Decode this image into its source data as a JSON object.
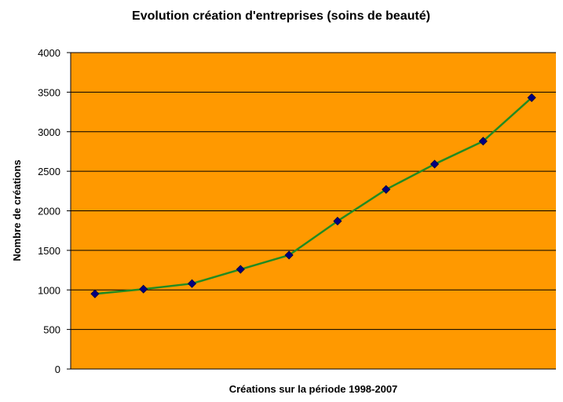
{
  "chart_data": {
    "type": "line",
    "title": "Evolution création d'entreprises (soins de beauté)",
    "xlabel": "Créations sur la période 1998-2007",
    "ylabel": "Nombre de créations",
    "ylim": [
      0,
      4000
    ],
    "yticks": [
      0,
      500,
      1000,
      1500,
      2000,
      2500,
      3000,
      3500,
      4000
    ],
    "grid": true,
    "legend": "none",
    "x": [
      "1998",
      "1999",
      "2000",
      "2001",
      "2002",
      "2003",
      "2004",
      "2005",
      "2006",
      "2007"
    ],
    "x_tick_labels_shown": false,
    "series": [
      {
        "values": [
          950,
          1010,
          1080,
          1260,
          1440,
          1870,
          2270,
          2590,
          2880,
          3430
        ]
      }
    ],
    "colors": {
      "plot_background": "#FF9900",
      "line": "#228B22",
      "marker": "#000080",
      "grid": "#000000"
    }
  }
}
